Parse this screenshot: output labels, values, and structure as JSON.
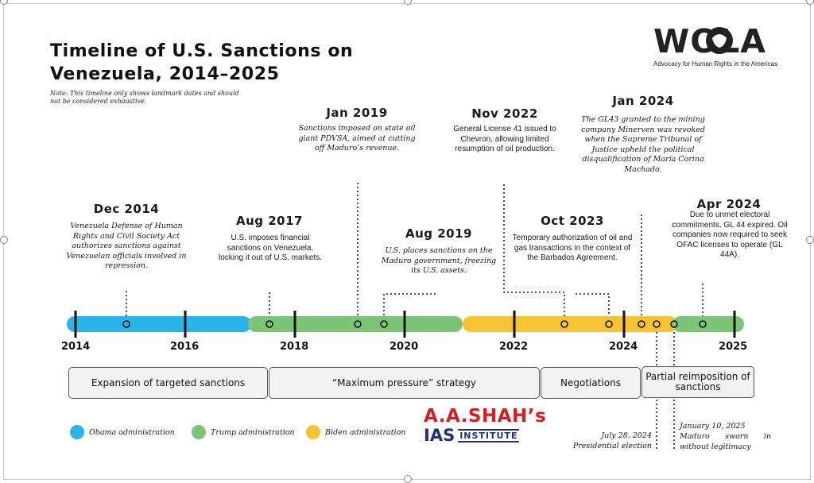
{
  "title": "Timeline of U.S. Sanctions on Venezuela, 2014–2025",
  "note": "Note: This timeline only shows landmark dates and should not be considered exhaustive.",
  "logo": {
    "name": "WOLA",
    "tagline": "Advocacy for Human Rights in the Americas"
  },
  "years": [
    "2014",
    "2016",
    "2018",
    "2020",
    "2022",
    "2024",
    "2025"
  ],
  "events": [
    {
      "date": "Dec 2014",
      "description": "Venezuela Defense of Human Rights and Civil Society Act authorizes sanctions against Venezuelan officials involved in repression."
    },
    {
      "date": "Aug 2017",
      "description": "U.S. imposes financial sanctions on Venezuela, locking it out of U.S. markets."
    },
    {
      "date": "Jan 2019",
      "description": "Sanctions imposed on state oil giant PDVSA, aimed at cutting off Maduro’s revenue."
    },
    {
      "date": "Aug 2019",
      "description": "U.S. places sanctions on the Maduro government, freezing its U.S. assets."
    },
    {
      "date": "Nov 2022",
      "description": "General License 41 issued to Chevron, allowing limited resumption of oil production."
    },
    {
      "date": "Oct 2023",
      "description": "Temporary authorization of oil and gas transactions in the context of the Barbados Agreement."
    },
    {
      "date": "Jan 2024",
      "description": "The GL43 granted to the mining company Minerven was revoked when the Supreme Tribunal of Justice upheld the political disqualification of María Corina Machado."
    },
    {
      "date": "Apr 2024",
      "description": "Due to unmet electoral commitments, GL 44 expired. Oil companies now required to seek OFAC licenses to operate (GL 44A)."
    }
  ],
  "phases": [
    {
      "label": "Expansion of targeted sanctions"
    },
    {
      "label": "“Maximum pressure” strategy"
    },
    {
      "label": "Negotiations"
    },
    {
      "label": "Partial reimposition of sanctions"
    }
  ],
  "legend": [
    {
      "label": "Obama administration",
      "color": "#29b5ea"
    },
    {
      "label": "Trump administration",
      "color": "#7cc576"
    },
    {
      "label": "Biden administration",
      "color": "#f6c332"
    }
  ],
  "footnotes": [
    {
      "line1": "July 28, 2024",
      "line2": "Presidential election"
    },
    {
      "line1": "January 10, 2025",
      "line2": "Maduro sworn in without legitimacy"
    }
  ],
  "institute": {
    "line1": "A.A.SHAH’s",
    "line2": "IAS",
    "line3": "INSTITUTE"
  }
}
